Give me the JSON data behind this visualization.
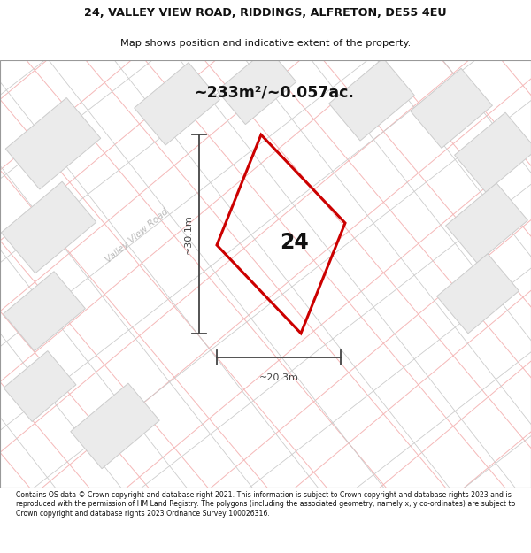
{
  "title_line1": "24, VALLEY VIEW ROAD, RIDDINGS, ALFRETON, DE55 4EU",
  "title_line2": "Map shows position and indicative extent of the property.",
  "area_text": "~233m²/~0.057ac.",
  "plot_number": "24",
  "dim_width": "~20.3m",
  "dim_height": "~30.1m",
  "road_label": "Valley View Road",
  "footer_text": "Contains OS data © Crown copyright and database right 2021. This information is subject to Crown copyright and database rights 2023 and is reproduced with the permission of HM Land Registry. The polygons (including the associated geometry, namely x, y co-ordinates) are subject to Crown copyright and database rights 2023 Ordnance Survey 100026316.",
  "map_bg": "#ffffff",
  "plot_fill": "none",
  "plot_edge": "#cc0000",
  "road_line_color": "#f5b8b8",
  "grid_line_color": "#cccccc",
  "other_plot_fill": "#ebebeb",
  "other_plot_edge": "#cccccc",
  "text_color": "#111111",
  "road_label_color": "#bbbbbb",
  "dim_color": "#444444"
}
